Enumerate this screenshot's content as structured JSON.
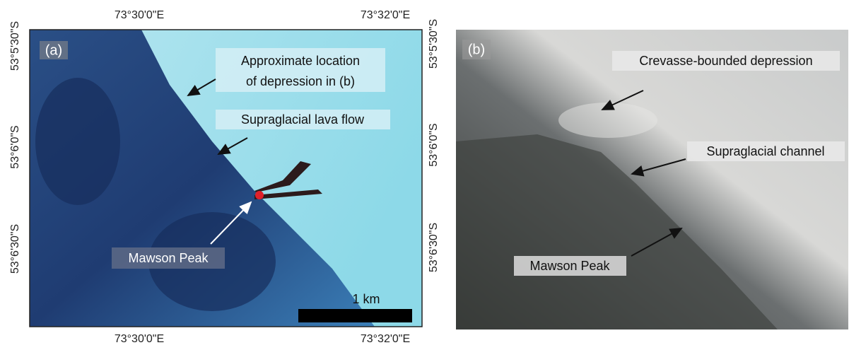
{
  "panels": [
    {
      "label": "(a)",
      "top_ticks": [
        "73°30'0\"E",
        "73°32'0\"E"
      ],
      "bottom_ticks": [
        "73°30'0\"E",
        "73°32'0\"E"
      ],
      "left_ticks": [
        "53°5'30\"S",
        "53°6'0\"S",
        "53°6'30\"S"
      ],
      "right_ticks": [
        "53°5'30\"S",
        "53°6'0\"S",
        "53°6'30\"S"
      ],
      "annotations": [
        {
          "lines": [
            "Approximate location",
            "of  depression in (b)"
          ]
        },
        {
          "lines": [
            "Supraglacial lava flow"
          ]
        },
        {
          "lines": [
            "Mawson Peak"
          ]
        }
      ],
      "scale_bar": "1 km"
    },
    {
      "label": "(b)",
      "annotations": [
        {
          "lines": [
            "Crevasse-bounded depression"
          ]
        },
        {
          "lines": [
            "Supraglacial channel"
          ]
        },
        {
          "lines": [
            "Mawson Peak"
          ]
        }
      ]
    }
  ]
}
